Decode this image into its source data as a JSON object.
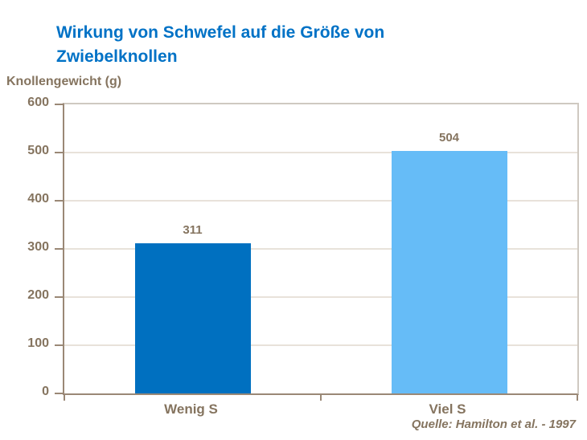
{
  "header": {
    "title_line1": "Wirkung von Schwefel auf die Größe von",
    "title_line2": "Zwiebelknollen"
  },
  "chart_data": {
    "type": "bar",
    "title": "Wirkung von Schwefel auf die Größe von Zwiebelknollen",
    "ylabel": "Knollengewicht (g)",
    "xlabel": "",
    "categories": [
      "Wenig S",
      "Viel S"
    ],
    "values": [
      311,
      504
    ],
    "value_labels": [
      "311",
      "504"
    ],
    "bar_colors": [
      "#0070C0",
      "#66BCF7"
    ],
    "ylim": [
      0,
      600
    ],
    "yticks": [
      0,
      100,
      200,
      300,
      400,
      500,
      600
    ],
    "grid": true,
    "legend": false
  },
  "source": {
    "credit": "Quelle: Hamilton et al. - 1997"
  },
  "colors": {
    "title_blue": "#0072C6",
    "bar_dark_blue": "#0070C0",
    "bar_light_blue": "#66BCF7",
    "text_brown": "#85745F",
    "axis_brown": "#9A8876",
    "gridline_beige": "#E8E2DA"
  }
}
